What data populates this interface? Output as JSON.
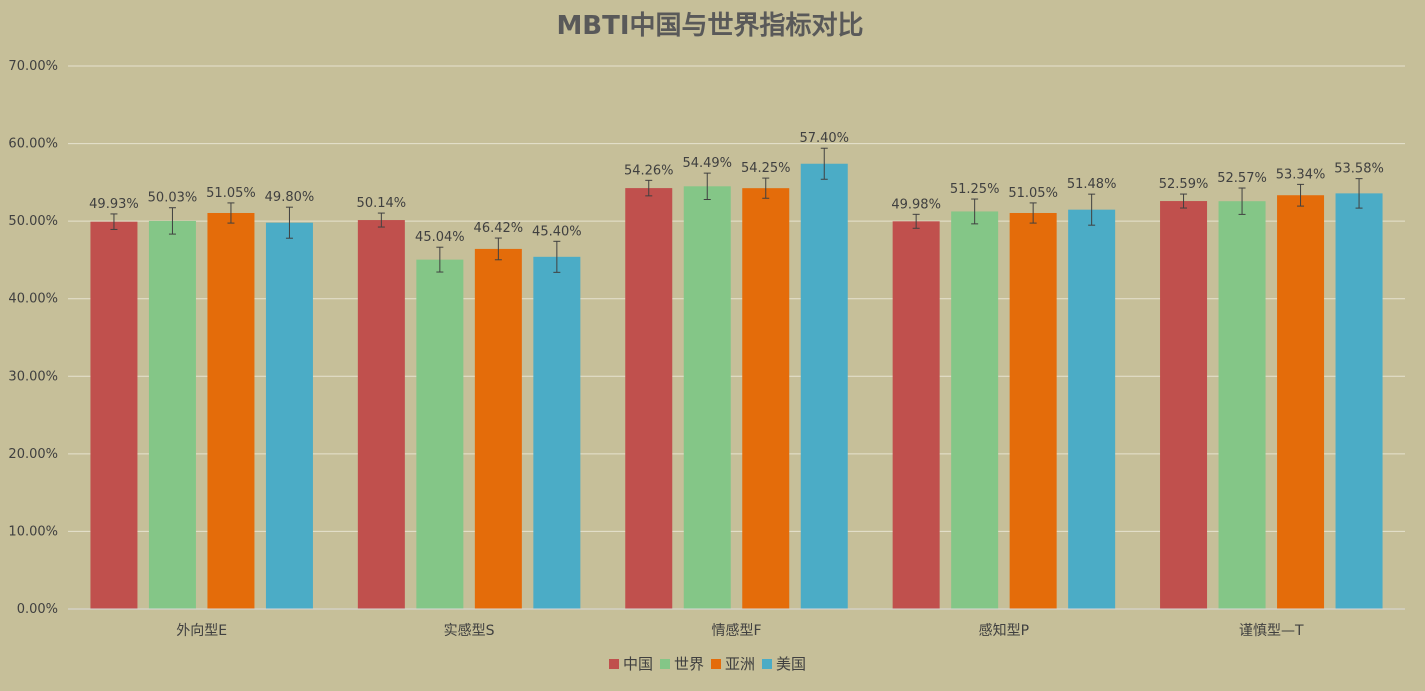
{
  "chart_data": {
    "type": "bar",
    "title": "MBTI中国与世界指标对比",
    "categories": [
      "外向型E",
      "实感型S",
      "情感型F",
      "感知型P",
      "谨慎型—T"
    ],
    "y_ticks": [
      "0.00%",
      "10.00%",
      "20.00%",
      "30.00%",
      "40.00%",
      "50.00%",
      "60.00%",
      "70.00%"
    ],
    "ylim": [
      0,
      70
    ],
    "grid": true,
    "legend_position": "bottom",
    "series": [
      {
        "name": "中国",
        "color": "#c0504d",
        "values": [
          49.93,
          50.14,
          54.26,
          49.98,
          52.59
        ],
        "labels": [
          "49.93%",
          "50.14%",
          "54.26%",
          "49.98%",
          "52.59%"
        ],
        "errors": [
          1.0,
          0.9,
          1.0,
          0.9,
          0.9
        ]
      },
      {
        "name": "世界",
        "color": "#84c687",
        "values": [
          50.03,
          45.04,
          54.49,
          51.25,
          52.57
        ],
        "labels": [
          "50.03%",
          "45.04%",
          "54.49%",
          "51.25%",
          "52.57%"
        ],
        "errors": [
          1.7,
          1.6,
          1.7,
          1.6,
          1.7
        ]
      },
      {
        "name": "亚洲",
        "color": "#e46c0a",
        "values": [
          51.05,
          46.42,
          54.25,
          51.05,
          53.34
        ],
        "labels": [
          "51.05%",
          "46.42%",
          "54.25%",
          "51.05%",
          "53.34%"
        ],
        "errors": [
          1.3,
          1.4,
          1.3,
          1.3,
          1.4
        ]
      },
      {
        "name": "美国",
        "color": "#4bacc6",
        "values": [
          49.8,
          45.4,
          57.4,
          51.48,
          53.58
        ],
        "labels": [
          "49.80%",
          "45.40%",
          "57.40%",
          "51.48%",
          "53.58%"
        ],
        "errors": [
          2.0,
          2.0,
          2.0,
          2.0,
          1.9
        ]
      }
    ]
  }
}
